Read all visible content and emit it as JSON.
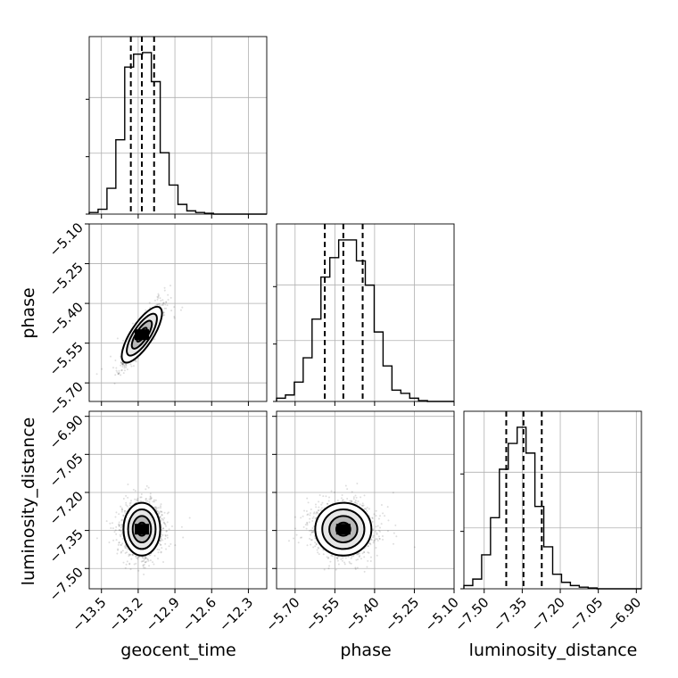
{
  "chart_data": {
    "type": "corner",
    "parameters": [
      "geocent_time",
      "phase",
      "luminosity_distance"
    ],
    "axis_labels": {
      "x": [
        "geocent_time",
        "phase",
        "luminosity_distance"
      ],
      "y_row1": "phase",
      "y_row2": "luminosity_distance"
    },
    "ranges": {
      "geocent_time": [
        -13.6,
        -12.15
      ],
      "phase": [
        -5.77,
        -5.1
      ],
      "luminosity_distance": [
        -7.58,
        -6.88
      ]
    },
    "ticks": {
      "geocent_time": [
        "-13.5",
        "-13.2",
        "-12.9",
        "-12.6",
        "-12.3"
      ],
      "phase": [
        "-5.70",
        "-5.55",
        "-5.40",
        "-5.25",
        "-5.10"
      ],
      "luminosity_distance": [
        "-7.50",
        "-7.35",
        "-7.20",
        "-7.05",
        "-6.90"
      ]
    },
    "tick_values": {
      "geocent_time": [
        -13.5,
        -13.2,
        -12.9,
        -12.6,
        -12.3
      ],
      "phase": [
        -5.7,
        -5.55,
        -5.4,
        -5.25,
        -5.1
      ],
      "luminosity_distance": [
        -7.5,
        -7.35,
        -7.2,
        -7.05,
        -6.9
      ]
    },
    "quantiles": {
      "geocent_time": [
        -13.26,
        -13.17,
        -13.07
      ],
      "phase": [
        -5.588,
        -5.518,
        -5.445
      ],
      "luminosity_distance": [
        -7.413,
        -7.345,
        -7.273
      ]
    },
    "histograms": {
      "geocent_time": {
        "edges_start": -13.6,
        "bin_width": 0.0725,
        "counts": [
          0.01,
          0.03,
          0.16,
          0.46,
          0.91,
          0.99,
          1.0,
          0.82,
          0.38,
          0.18,
          0.06,
          0.02,
          0.01,
          0.005,
          0,
          0,
          0,
          0,
          0,
          0
        ]
      },
      "phase": {
        "edges_start": -5.77,
        "bin_width": 0.0335,
        "counts": [
          0.02,
          0.04,
          0.12,
          0.27,
          0.51,
          0.77,
          0.89,
          1.0,
          1.0,
          0.87,
          0.72,
          0.43,
          0.22,
          0.07,
          0.05,
          0.02,
          0.005,
          0,
          0,
          0
        ]
      },
      "luminosity_distance": {
        "edges_start": -7.58,
        "bin_width": 0.035,
        "counts": [
          0.02,
          0.06,
          0.21,
          0.44,
          0.74,
          0.9,
          1.0,
          0.84,
          0.51,
          0.26,
          0.09,
          0.04,
          0.02,
          0.01,
          0.005,
          0,
          0,
          0,
          0,
          0
        ]
      }
    },
    "joint_2d": [
      {
        "x": "geocent_time",
        "y": "phase",
        "center": [
          -13.17,
          -5.518
        ],
        "sigma": [
          0.075,
          0.053
        ],
        "correlation": 0.88
      },
      {
        "x": "geocent_time",
        "y": "luminosity_distance",
        "center": [
          -13.17,
          -7.345
        ],
        "sigma": [
          0.075,
          0.052
        ],
        "correlation": 0.0
      },
      {
        "x": "phase",
        "y": "luminosity_distance",
        "center": [
          -5.518,
          -7.345
        ],
        "sigma": [
          0.053,
          0.052
        ],
        "correlation": 0.0
      }
    ],
    "grid": true,
    "colors": {
      "line": "#000000",
      "grid": "#b0b0b0",
      "scatter": "#000000"
    }
  }
}
